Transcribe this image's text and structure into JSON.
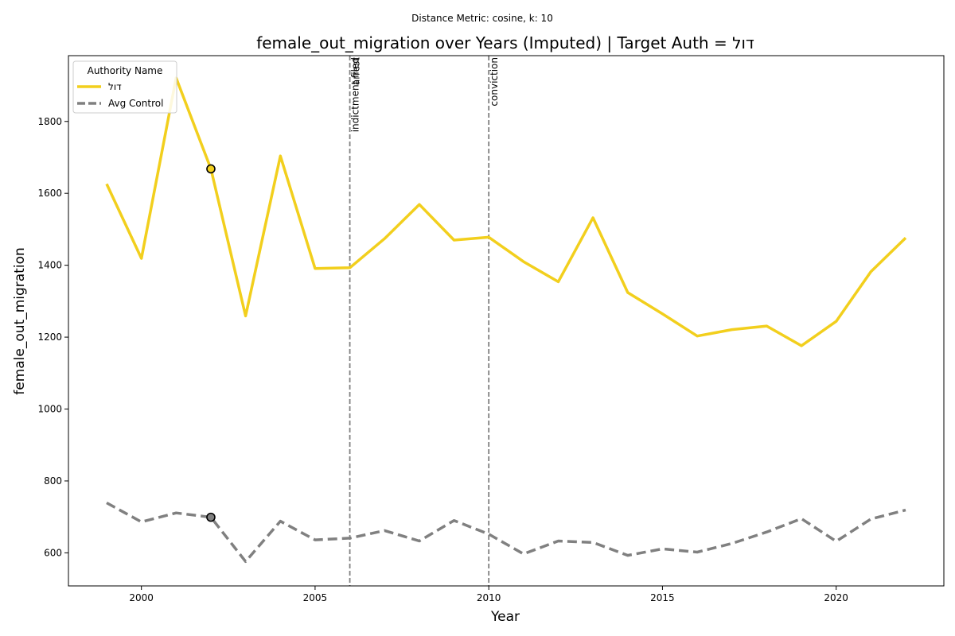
{
  "chart_data": {
    "type": "line",
    "suptitle": "Distance Metric: cosine, k: 10",
    "title": "female_out_migration over Years (Imputed) | Target Auth = דול",
    "xlabel": "Year",
    "ylabel": "female_out_migration",
    "xlim": [
      1997.9,
      2023.1
    ],
    "ylim": [
      508,
      1983
    ],
    "xticks": [
      2000,
      2005,
      2010,
      2015,
      2020
    ],
    "yticks": [
      600,
      800,
      1000,
      1200,
      1400,
      1600,
      1800
    ],
    "grid": false,
    "legend": {
      "title": "Authority Name",
      "placement": "top-left"
    },
    "x": [
      1999,
      2000,
      2001,
      2002,
      2003,
      2004,
      2005,
      2006,
      2007,
      2008,
      2009,
      2010,
      2011,
      2012,
      2013,
      2014,
      2015,
      2016,
      2017,
      2018,
      2019,
      2020,
      2021,
      2022
    ],
    "series": [
      {
        "name": "דול",
        "color": "#f2cf1d",
        "dash": "solid",
        "values": [
          1626,
          1419,
          1921,
          1668,
          1259,
          1704,
          1391,
          1393,
          1474,
          1569,
          1470,
          1478,
          1410,
          1354,
          1532,
          1324,
          1265,
          1203,
          1221,
          1231,
          1176,
          1244,
          1382,
          1476
        ]
      },
      {
        "name": "Avg Control",
        "color": "#808080",
        "dash": "dashed",
        "values": [
          739,
          686,
          711,
          699,
          576,
          688,
          636,
          641,
          662,
          633,
          690,
          652,
          597,
          633,
          629,
          593,
          611,
          602,
          626,
          658,
          695,
          632,
          694,
          719
        ]
      }
    ],
    "markers": [
      {
        "series": "דול",
        "x": 2002,
        "y": 1668
      },
      {
        "series": "Avg Control",
        "x": 2002,
        "y": 699
      }
    ],
    "events": [
      {
        "x": 2006,
        "labels": [
          "indictment filed",
          "arrest"
        ]
      },
      {
        "x": 2010,
        "labels": [
          "conviction"
        ]
      }
    ]
  }
}
